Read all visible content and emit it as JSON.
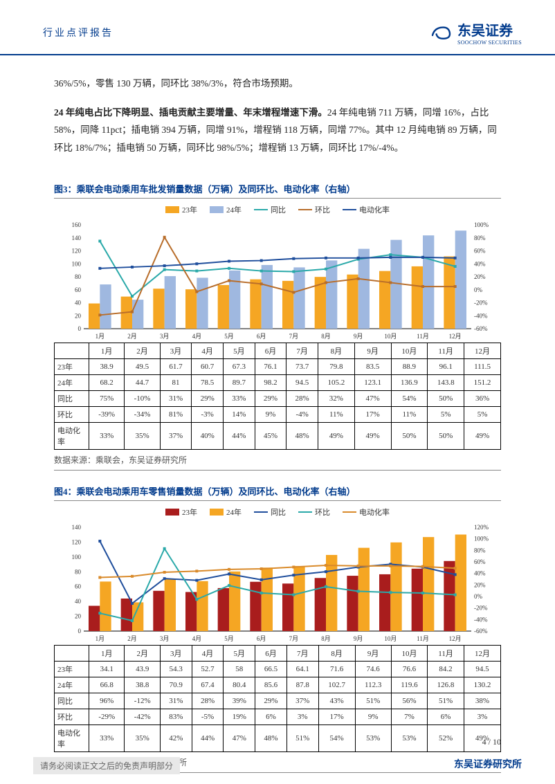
{
  "header": {
    "left_title": "行业点评报告",
    "logo_cn": "东吴证券",
    "logo_en": "SOOCHOW SECURITIES",
    "logo_color": "#003a8c"
  },
  "para1": "36%/5%，零售 130 万辆，同环比 38%/3%，符合市场预期。",
  "para2_bold": "24 年纯电占比下降明显、插电贡献主要增量、年末增程增速下滑。",
  "para2_rest": "24 年纯电销 711 万辆，同增 16%，占比 58%，同降 11pct；插电销 394 万辆，同增 91%，增程销 118 万辆，同增 77%。其中 12 月纯电销 89 万辆，同环比 18%/7%；插电销 50 万辆，同环比 98%/5%；增程销 13 万辆，同环比 17%/-4%。",
  "chart3": {
    "title": "图3：乘联会电动乘用车批发销量数据（万辆）及同环比、电动化率（右轴）",
    "type": "bar+line",
    "months": [
      "1月",
      "2月",
      "3月",
      "4月",
      "5月",
      "6月",
      "7月",
      "8月",
      "9月",
      "10月",
      "11月",
      "12月"
    ],
    "legend": [
      "23年",
      "24年",
      "同比",
      "环比",
      "电动化率"
    ],
    "colors": {
      "y23": "#f5a623",
      "y24": "#9fb8e0",
      "tongbi": "#2aa9a9",
      "huanbi": "#b86d2a",
      "dianhua": "#1f4e9c"
    },
    "y23": [
      38.9,
      49.5,
      61.7,
      60.7,
      67.3,
      76.1,
      73.7,
      79.8,
      83.5,
      88.9,
      96.1,
      111.5
    ],
    "y24": [
      68.2,
      44.7,
      81.0,
      78.5,
      89.7,
      98.2,
      94.5,
      105.2,
      123.1,
      136.9,
      143.8,
      151.2
    ],
    "tongbi_pct": [
      75,
      -10,
      31,
      29,
      33,
      29,
      28,
      32,
      47,
      54,
      50,
      36
    ],
    "huanbi_pct": [
      -39,
      -34,
      81,
      -3,
      14,
      9,
      -4,
      11,
      17,
      11,
      5,
      5
    ],
    "dianhua_pct": [
      33,
      35,
      37,
      40,
      44,
      45,
      48,
      49,
      49,
      50,
      50,
      49
    ],
    "ylim_left": [
      0,
      160
    ],
    "ytick_left": 20,
    "ylim_right": [
      -60,
      100
    ],
    "ytick_right": 20,
    "background": "#ffffff",
    "bar_width": 0.35,
    "font_size": 11
  },
  "chart3_source": "数据来源：乘联会，东吴证券研究所",
  "chart4": {
    "title": "图4：乘联会电动乘用车零售销量数据（万辆）及同环比、电动化率（右轴）",
    "type": "bar+line",
    "months": [
      "1月",
      "2月",
      "3月",
      "4月",
      "5月",
      "6月",
      "7月",
      "8月",
      "9月",
      "10月",
      "11月",
      "12月"
    ],
    "legend": [
      "23年",
      "24年",
      "同比",
      "环比",
      "电动化率"
    ],
    "colors": {
      "y23": "#a91d1d",
      "y24": "#f5a623",
      "tongbi": "#1f4e9c",
      "huanbi": "#2aa9a9",
      "dianhua": "#d98a2a"
    },
    "y23": [
      34.1,
      43.9,
      54.3,
      52.7,
      58.0,
      66.5,
      64.1,
      71.6,
      74.6,
      76.6,
      84.2,
      94.5
    ],
    "y24": [
      66.8,
      38.8,
      70.9,
      67.4,
      80.4,
      85.6,
      87.8,
      102.7,
      112.3,
      119.6,
      126.8,
      130.2
    ],
    "tongbi_pct": [
      96,
      -12,
      31,
      28,
      39,
      29,
      37,
      43,
      51,
      56,
      51,
      38
    ],
    "huanbi_pct": [
      -29,
      -42,
      83,
      -5,
      19,
      6,
      3,
      17,
      9,
      7,
      6,
      3
    ],
    "dianhua_pct": [
      33,
      35,
      42,
      44,
      47,
      48,
      51,
      54,
      53,
      53,
      52,
      49
    ],
    "ylim_left": [
      0,
      140
    ],
    "ytick_left": 20,
    "ylim_right": [
      -60,
      120
    ],
    "ytick_right": 20,
    "background": "#ffffff",
    "bar_width": 0.35,
    "font_size": 11
  },
  "chart4_source": "数据来源：乘联会，东吴证券研究所",
  "footer": {
    "page": "4 / 10",
    "disclaimer": "请务必阅读正文之后的免责声明部分",
    "org": "东吴证券研究所"
  },
  "row_labels": {
    "y23": "23年",
    "y24": "24年",
    "tongbi": "同比",
    "huanbi": "环比",
    "dianhua": "电动化率"
  }
}
